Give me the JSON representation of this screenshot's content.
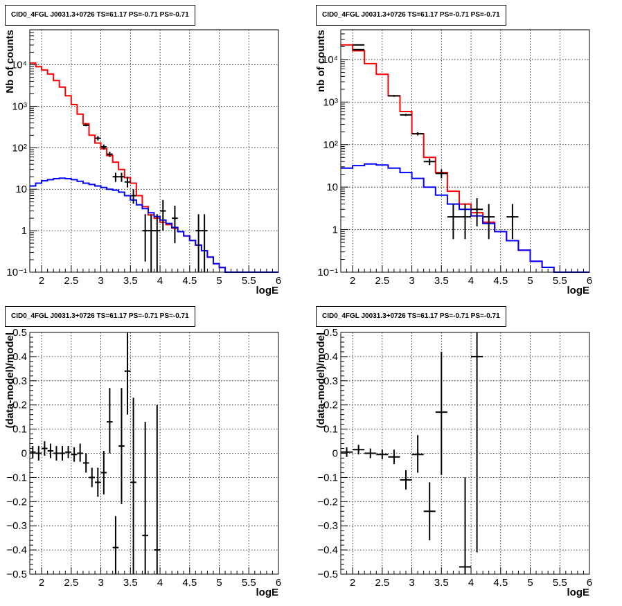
{
  "chart_data": [
    {
      "type": "line",
      "title": "CID0_4FGL J0031.3+0726 TS=61.17 PS=-0.71 PS=-0.71",
      "xlabel": "logE",
      "ylabel": "Nb of counts",
      "log_y": true,
      "xlim": [
        1.8,
        6.0
      ],
      "ylim": [
        0.1,
        70000
      ],
      "x_ticks": [
        2,
        2.5,
        3,
        3.5,
        4,
        4.5,
        5,
        5.5,
        6
      ],
      "x_tick_labels": [
        "2",
        "2.5",
        "3",
        "3.5",
        "4",
        "4.5",
        "5",
        "5.5",
        "6"
      ],
      "y_ticks": [
        0.1,
        1,
        10,
        100,
        1000,
        10000
      ],
      "y_tick_labels": [
        "10⁻¹",
        "1",
        "10",
        "10²",
        "10³",
        "10⁴"
      ],
      "grid": true,
      "series": [
        {
          "kind": "step",
          "color": "#ff0000",
          "edges": [
            1.8,
            1.9,
            2.0,
            2.1,
            2.2,
            2.3,
            2.4,
            2.5,
            2.6,
            2.7,
            2.8,
            2.9,
            3.0,
            3.1,
            3.2,
            3.3,
            3.4,
            3.5,
            3.6,
            3.7,
            3.8,
            3.9,
            4.0,
            4.1,
            4.2,
            4.3,
            4.4,
            4.5,
            4.6,
            4.7,
            4.8,
            4.9,
            5.0,
            5.1,
            5.2,
            5.3,
            5.4,
            5.5,
            5.6,
            5.7,
            5.8,
            5.9,
            6.0
          ],
          "values": [
            11000,
            9000,
            7500,
            6000,
            4200,
            2900,
            1800,
            1100,
            650,
            380,
            200,
            130,
            95,
            65,
            45,
            30,
            19,
            14,
            7,
            3.8,
            2.4,
            2.0,
            1.6,
            1.4,
            1.15,
            0.95,
            0.75,
            0.58,
            0.45,
            0.33,
            0.23,
            0.16,
            0.13,
            0.1,
            0.1,
            0.1,
            0.1,
            0.1,
            0.1,
            0.1,
            0.1,
            0.1
          ]
        },
        {
          "kind": "step",
          "color": "#0000ff",
          "edges": [
            1.8,
            1.9,
            2.0,
            2.1,
            2.2,
            2.3,
            2.4,
            2.5,
            2.6,
            2.7,
            2.8,
            2.9,
            3.0,
            3.1,
            3.2,
            3.3,
            3.4,
            3.5,
            3.6,
            3.7,
            3.8,
            3.9,
            4.0,
            4.1,
            4.2,
            4.3,
            4.4,
            4.5,
            4.6,
            4.7,
            4.8,
            4.9,
            5.0,
            5.1,
            5.2,
            5.3,
            5.4,
            5.5,
            5.6,
            5.7,
            5.8,
            5.9,
            6.0
          ],
          "values": [
            12,
            14,
            16,
            17,
            18,
            18.5,
            18,
            17,
            15.5,
            14,
            13,
            12,
            11,
            10,
            9.5,
            8.5,
            7,
            5.5,
            4.2,
            3.4,
            2.7,
            2.2,
            1.8,
            1.5,
            1.2,
            0.95,
            0.75,
            0.58,
            0.45,
            0.33,
            0.23,
            0.16,
            0.13,
            0.1,
            0.1,
            0.1,
            0.1,
            0.1,
            0.1,
            0.1,
            0.1,
            0.1
          ]
        },
        {
          "kind": "errorbar",
          "color": "#000000",
          "points": [
            {
              "x": 2.75,
              "y": 350,
              "xerr": 0.05,
              "ylo": 330,
              "yhi": 370
            },
            {
              "x": 2.95,
              "y": 170,
              "xerr": 0.05,
              "ylo": 150,
              "yhi": 190
            },
            {
              "x": 3.05,
              "y": 105,
              "xerr": 0.05,
              "ylo": 90,
              "yhi": 120
            },
            {
              "x": 3.15,
              "y": 70,
              "xerr": 0.05,
              "ylo": 60,
              "yhi": 80
            },
            {
              "x": 3.25,
              "y": 20,
              "xerr": 0.05,
              "ylo": 15,
              "yhi": 25
            },
            {
              "x": 3.35,
              "y": 20,
              "xerr": 0.05,
              "ylo": 15,
              "yhi": 25
            },
            {
              "x": 3.45,
              "y": 15,
              "xerr": 0.05,
              "ylo": 11,
              "yhi": 20
            },
            {
              "x": 3.55,
              "y": 7,
              "xerr": 0.05,
              "ylo": 4.5,
              "yhi": 10
            },
            {
              "x": 3.75,
              "y": 1,
              "xerr": 0.05,
              "ylo": 0.18,
              "yhi": 2.5
            },
            {
              "x": 3.85,
              "y": 1,
              "xerr": 0.05,
              "ylo": 0.1,
              "yhi": 2.5
            },
            {
              "x": 3.95,
              "y": 1,
              "xerr": 0.05,
              "ylo": 0.1,
              "yhi": 2.5
            },
            {
              "x": 4.05,
              "y": 3,
              "xerr": 0.05,
              "ylo": 1.0,
              "yhi": 5.5
            },
            {
              "x": 4.25,
              "y": 2,
              "xerr": 0.05,
              "ylo": 0.5,
              "yhi": 4.0
            },
            {
              "x": 4.65,
              "y": 1,
              "xerr": 0.05,
              "ylo": 0.1,
              "yhi": 2.5
            },
            {
              "x": 4.75,
              "y": 1,
              "xerr": 0.05,
              "ylo": 0.1,
              "yhi": 2.5
            }
          ]
        }
      ]
    },
    {
      "type": "line",
      "title": "CID0_4FGL J0031.3+0726 TS=61.17 PS=-0.71 PS=-0.71",
      "xlabel": "logE",
      "ylabel": "nb of counts",
      "log_y": true,
      "xlim": [
        1.8,
        6.0
      ],
      "ylim": [
        0.1,
        50000
      ],
      "x_ticks": [
        2,
        2.5,
        3,
        3.5,
        4,
        4.5,
        5,
        5.5,
        6
      ],
      "x_tick_labels": [
        "2",
        "2.5",
        "3",
        "3.5",
        "4",
        "4.5",
        "5",
        "5.5",
        "6"
      ],
      "y_ticks": [
        0.1,
        1,
        10,
        100,
        1000,
        10000
      ],
      "y_tick_labels": [
        "10⁻¹",
        "1",
        "10",
        "10²",
        "10³",
        "10⁴"
      ],
      "grid": true,
      "series": [
        {
          "kind": "step",
          "color": "#ff0000",
          "edges": [
            1.8,
            2.0,
            2.2,
            2.4,
            2.6,
            2.8,
            3.0,
            3.2,
            3.4,
            3.6,
            3.8,
            4.0,
            4.2,
            4.4,
            4.6,
            4.8,
            5.0,
            5.2,
            5.4,
            5.6,
            5.8,
            6.0
          ],
          "values": [
            22000,
            16000,
            8000,
            4500,
            1400,
            600,
            180,
            50,
            22,
            8,
            4,
            2.5,
            1.5,
            0.9,
            0.55,
            0.33,
            0.18,
            0.13,
            0.1,
            0.1,
            0.1
          ]
        },
        {
          "kind": "step",
          "color": "#0000ff",
          "edges": [
            1.8,
            2.0,
            2.2,
            2.4,
            2.6,
            2.8,
            3.0,
            3.2,
            3.4,
            3.6,
            3.8,
            4.0,
            4.2,
            4.4,
            4.6,
            4.8,
            5.0,
            5.2,
            5.4,
            5.6,
            5.8,
            6.0
          ],
          "values": [
            28,
            32,
            35,
            33,
            28,
            22,
            16,
            10,
            6.5,
            4,
            3.0,
            2.1,
            1.4,
            0.9,
            0.55,
            0.33,
            0.18,
            0.13,
            0.1,
            0.1,
            0.1
          ]
        },
        {
          "kind": "errorbar",
          "color": "#000000",
          "points": [
            {
              "x": 2.1,
              "y": 22000,
              "xerr": 0.1,
              "ylo": 21500,
              "yhi": 22500
            },
            {
              "x": 2.1,
              "y": 17000,
              "xerr": 0.1,
              "ylo": 16600,
              "yhi": 17400
            },
            {
              "x": 2.7,
              "y": 1400,
              "xerr": 0.1,
              "ylo": 1330,
              "yhi": 1470
            },
            {
              "x": 2.9,
              "y": 500,
              "xerr": 0.1,
              "ylo": 470,
              "yhi": 530
            },
            {
              "x": 3.1,
              "y": 180,
              "xerr": 0.1,
              "ylo": 165,
              "yhi": 195
            },
            {
              "x": 3.3,
              "y": 40,
              "xerr": 0.1,
              "ylo": 33,
              "yhi": 47
            },
            {
              "x": 3.5,
              "y": 21,
              "xerr": 0.1,
              "ylo": 16,
              "yhi": 26
            },
            {
              "x": 3.7,
              "y": 2,
              "xerr": 0.1,
              "ylo": 0.6,
              "yhi": 4.0
            },
            {
              "x": 3.9,
              "y": 2,
              "xerr": 0.1,
              "ylo": 0.6,
              "yhi": 4.0
            },
            {
              "x": 4.1,
              "y": 3,
              "xerr": 0.1,
              "ylo": 1.2,
              "yhi": 5.5
            },
            {
              "x": 4.3,
              "y": 2,
              "xerr": 0.1,
              "ylo": 0.6,
              "yhi": 4.0
            },
            {
              "x": 4.7,
              "y": 2,
              "xerr": 0.1,
              "ylo": 0.6,
              "yhi": 4.0
            }
          ]
        }
      ]
    },
    {
      "type": "scatter",
      "title": "CID0_4FGL J0031.3+0726 TS=61.17 PS=-0.71 PS=-0.71",
      "xlabel": "logE",
      "ylabel": "(data-model)/model",
      "log_y": false,
      "xlim": [
        1.8,
        6.0
      ],
      "ylim": [
        -0.5,
        0.5
      ],
      "x_ticks": [
        2,
        2.5,
        3,
        3.5,
        4,
        4.5,
        5,
        5.5,
        6
      ],
      "x_tick_labels": [
        "2",
        "2.5",
        "3",
        "3.5",
        "4",
        "4.5",
        "5",
        "5.5",
        "6"
      ],
      "y_ticks": [
        -0.5,
        -0.4,
        -0.3,
        -0.2,
        -0.1,
        0,
        0.1,
        0.2,
        0.3,
        0.4,
        0.5
      ],
      "y_tick_labels": [
        "−0.5",
        "−0.4",
        "−0.3",
        "−0.2",
        "−0.1",
        "0",
        "0.1",
        "0.2",
        "0.3",
        "0.4",
        "0.5"
      ],
      "grid": true,
      "series": [
        {
          "kind": "errorbar",
          "color": "#000000",
          "points": [
            {
              "x": 1.85,
              "y": 0.005,
              "xerr": 0.05,
              "ylo": -0.02,
              "yhi": 0.03
            },
            {
              "x": 1.95,
              "y": 0.0,
              "xerr": 0.05,
              "ylo": -0.03,
              "yhi": 0.03
            },
            {
              "x": 2.05,
              "y": 0.02,
              "xerr": 0.05,
              "ylo": -0.01,
              "yhi": 0.05
            },
            {
              "x": 2.15,
              "y": 0.01,
              "xerr": 0.05,
              "ylo": -0.02,
              "yhi": 0.04
            },
            {
              "x": 2.25,
              "y": 0.0,
              "xerr": 0.05,
              "ylo": -0.03,
              "yhi": 0.03
            },
            {
              "x": 2.35,
              "y": 0.0,
              "xerr": 0.05,
              "ylo": -0.03,
              "yhi": 0.03
            },
            {
              "x": 2.45,
              "y": 0.005,
              "xerr": 0.05,
              "ylo": -0.02,
              "yhi": 0.03
            },
            {
              "x": 2.55,
              "y": -0.005,
              "xerr": 0.05,
              "ylo": -0.035,
              "yhi": 0.025
            },
            {
              "x": 2.65,
              "y": 0.0,
              "xerr": 0.05,
              "ylo": -0.035,
              "yhi": 0.04
            },
            {
              "x": 2.75,
              "y": -0.04,
              "xerr": 0.05,
              "ylo": -0.08,
              "yhi": 0.0
            },
            {
              "x": 2.85,
              "y": -0.1,
              "xerr": 0.05,
              "ylo": -0.14,
              "yhi": -0.06
            },
            {
              "x": 2.95,
              "y": -0.12,
              "xerr": 0.05,
              "ylo": -0.18,
              "yhi": -0.06
            },
            {
              "x": 3.05,
              "y": -0.08,
              "xerr": 0.05,
              "ylo": -0.17,
              "yhi": 0.01
            },
            {
              "x": 3.15,
              "y": 0.13,
              "xerr": 0.05,
              "ylo": 0.0,
              "yhi": 0.27
            },
            {
              "x": 3.25,
              "y": -0.39,
              "xerr": 0.05,
              "ylo": -0.5,
              "yhi": -0.26
            },
            {
              "x": 3.35,
              "y": 0.03,
              "xerr": 0.05,
              "ylo": -0.21,
              "yhi": 0.27
            },
            {
              "x": 3.45,
              "y": 0.34,
              "xerr": 0.05,
              "ylo": 0.16,
              "yhi": 0.5
            },
            {
              "x": 3.55,
              "y": -0.12,
              "xerr": 0.05,
              "ylo": -0.5,
              "yhi": 0.23
            },
            {
              "x": 3.75,
              "y": -0.34,
              "xerr": 0.05,
              "ylo": -0.5,
              "yhi": 0.13
            },
            {
              "x": 3.95,
              "y": -0.4,
              "xerr": 0.05,
              "ylo": -0.5,
              "yhi": 0.2
            }
          ]
        }
      ]
    },
    {
      "type": "scatter",
      "title": "CID0_4FGL J0031.3+0726 TS=61.17 PS=-0.71 PS=-0.71",
      "xlabel": "logE",
      "ylabel": "(data-model)/model",
      "log_y": false,
      "xlim": [
        1.8,
        6.0
      ],
      "ylim": [
        -0.5,
        0.5
      ],
      "x_ticks": [
        2,
        2.5,
        3,
        3.5,
        4,
        4.5,
        5,
        5.5,
        6
      ],
      "x_tick_labels": [
        "2",
        "2.5",
        "3",
        "3.5",
        "4",
        "4.5",
        "5",
        "5.5",
        "6"
      ],
      "y_ticks": [
        -0.5,
        -0.4,
        -0.3,
        -0.2,
        -0.1,
        0,
        0.1,
        0.2,
        0.3,
        0.4,
        0.5
      ],
      "y_tick_labels": [
        "−0.5",
        "−0.4",
        "−0.3",
        "−0.2",
        "−0.1",
        "0",
        "0.1",
        "0.2",
        "0.3",
        "0.4",
        "0.5"
      ],
      "grid": true,
      "series": [
        {
          "kind": "errorbar",
          "color": "#000000",
          "points": [
            {
              "x": 1.9,
              "y": 0.005,
              "xerr": 0.1,
              "ylo": -0.015,
              "yhi": 0.025
            },
            {
              "x": 2.1,
              "y": 0.015,
              "xerr": 0.1,
              "ylo": -0.005,
              "yhi": 0.035
            },
            {
              "x": 2.3,
              "y": 0.0,
              "xerr": 0.1,
              "ylo": -0.02,
              "yhi": 0.02
            },
            {
              "x": 2.5,
              "y": -0.005,
              "xerr": 0.1,
              "ylo": -0.025,
              "yhi": 0.015
            },
            {
              "x": 2.7,
              "y": -0.015,
              "xerr": 0.1,
              "ylo": -0.045,
              "yhi": 0.015
            },
            {
              "x": 2.9,
              "y": -0.11,
              "xerr": 0.1,
              "ylo": -0.15,
              "yhi": -0.07
            },
            {
              "x": 3.1,
              "y": -0.005,
              "xerr": 0.1,
              "ylo": -0.08,
              "yhi": 0.075
            },
            {
              "x": 3.3,
              "y": -0.24,
              "xerr": 0.1,
              "ylo": -0.36,
              "yhi": -0.12
            },
            {
              "x": 3.5,
              "y": 0.17,
              "xerr": 0.1,
              "ylo": -0.09,
              "yhi": 0.42
            },
            {
              "x": 3.9,
              "y": -0.47,
              "xerr": 0.1,
              "ylo": -0.5,
              "yhi": -0.1
            },
            {
              "x": 4.1,
              "y": 0.4,
              "xerr": 0.1,
              "ylo": -0.41,
              "yhi": 0.5
            }
          ]
        }
      ]
    }
  ]
}
